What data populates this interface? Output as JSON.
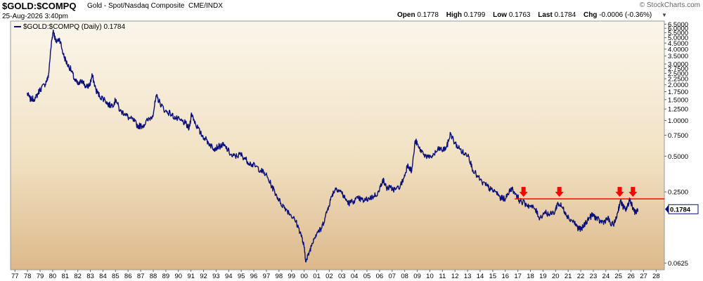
{
  "header": {
    "symbol": "$GOLD:$COMPQ",
    "name": "Gold - Spot/Nasdaq Composite",
    "exchange": "CME/INDX",
    "date": "25-Aug-2026 3:40pm",
    "brand": "© StockCharts.com",
    "open_label": "Open",
    "open": "0.1778",
    "high_label": "High",
    "high": "0.1799",
    "low_label": "Low",
    "low": "0.1763",
    "last_label": "Last",
    "last": "0.1784",
    "chg_label": "Chg",
    "chg": "-0.0006 (-0.36%)"
  },
  "colors": {
    "line": "#0a0f7a",
    "resistance": "#ff0000",
    "arrows": "#ff0000",
    "bg_top": "#fbf6ec",
    "bg_bottom": "#dcb98b"
  },
  "chart_data": {
    "type": "line",
    "scale": "log",
    "legend": "$GOLD:$COMPQ (Daily) 0.1784",
    "last_value_label": "0.1784",
    "x_labels": [
      "77",
      "78",
      "79",
      "80",
      "81",
      "82",
      "83",
      "84",
      "85",
      "86",
      "87",
      "88",
      "89",
      "90",
      "91",
      "92",
      "93",
      "94",
      "95",
      "96",
      "97",
      "98",
      "99",
      "00",
      "01",
      "02",
      "03",
      "04",
      "05",
      "06",
      "07",
      "08",
      "09",
      "10",
      "11",
      "12",
      "13",
      "14",
      "15",
      "16",
      "17",
      "18",
      "19",
      "20",
      "21",
      "22",
      "23",
      "24",
      "25",
      "26",
      "27",
      "28"
    ],
    "y_ticks": [
      {
        "value": 6.5,
        "label": "6.5000"
      },
      {
        "value": 6.0,
        "label": "6.0000"
      },
      {
        "value": 5.5,
        "label": "5.5000"
      },
      {
        "value": 5.0,
        "label": "5.0000"
      },
      {
        "value": 4.5,
        "label": "4.5000"
      },
      {
        "value": 4.0,
        "label": "4.0000"
      },
      {
        "value": 3.5,
        "label": "3.5000"
      },
      {
        "value": 3.0,
        "label": "3.0000"
      },
      {
        "value": 2.75,
        "label": "2.7500"
      },
      {
        "value": 2.5,
        "label": "2.5000"
      },
      {
        "value": 2.25,
        "label": "2.2500"
      },
      {
        "value": 2.0,
        "label": "2.0000"
      },
      {
        "value": 1.75,
        "label": "1.7500"
      },
      {
        "value": 1.5,
        "label": "1.5000"
      },
      {
        "value": 1.25,
        "label": "1.2500"
      },
      {
        "value": 1.0,
        "label": "1.0000"
      },
      {
        "value": 0.75,
        "label": "0.7500"
      },
      {
        "value": 0.5,
        "label": "0.5000"
      },
      {
        "value": 0.25,
        "label": "0.2500"
      },
      {
        "value": 0.0625,
        "label": "0.0625"
      }
    ],
    "ylim": [
      0.055,
      6.9
    ],
    "xlim": [
      1976.7,
      2028.7
    ],
    "series": [
      {
        "points": [
          [
            1978.0,
            1.7
          ],
          [
            1978.3,
            1.5
          ],
          [
            1978.7,
            1.55
          ],
          [
            1979.0,
            1.8
          ],
          [
            1979.4,
            2.0
          ],
          [
            1979.7,
            2.3
          ],
          [
            1979.95,
            4.5
          ],
          [
            1980.1,
            5.8
          ],
          [
            1980.3,
            4.6
          ],
          [
            1980.6,
            4.9
          ],
          [
            1980.9,
            3.6
          ],
          [
            1981.2,
            3.0
          ],
          [
            1981.5,
            2.7
          ],
          [
            1981.8,
            2.2
          ],
          [
            1982.1,
            2.0
          ],
          [
            1982.4,
            2.2
          ],
          [
            1982.7,
            1.9
          ],
          [
            1983.0,
            2.0
          ],
          [
            1983.2,
            2.4
          ],
          [
            1983.5,
            1.8
          ],
          [
            1983.8,
            1.6
          ],
          [
            1984.2,
            1.5
          ],
          [
            1984.5,
            1.35
          ],
          [
            1984.8,
            1.35
          ],
          [
            1985.1,
            1.5
          ],
          [
            1985.4,
            1.2
          ],
          [
            1985.8,
            1.15
          ],
          [
            1986.1,
            1.05
          ],
          [
            1986.5,
            1.0
          ],
          [
            1986.8,
            0.9
          ],
          [
            1987.2,
            0.9
          ],
          [
            1987.6,
            1.0
          ],
          [
            1988.0,
            1.1
          ],
          [
            1988.3,
            1.6
          ],
          [
            1988.6,
            1.4
          ],
          [
            1989.0,
            1.2
          ],
          [
            1989.4,
            1.15
          ],
          [
            1989.8,
            1.05
          ],
          [
            1990.2,
            1.0
          ],
          [
            1990.6,
            0.95
          ],
          [
            1990.9,
            0.85
          ],
          [
            1991.1,
            1.15
          ],
          [
            1991.4,
            0.95
          ],
          [
            1991.8,
            0.78
          ],
          [
            1992.2,
            0.7
          ],
          [
            1992.6,
            0.62
          ],
          [
            1992.9,
            0.58
          ],
          [
            1993.2,
            0.6
          ],
          [
            1993.6,
            0.62
          ],
          [
            1993.9,
            0.58
          ],
          [
            1994.3,
            0.5
          ],
          [
            1994.7,
            0.5
          ],
          [
            1995.0,
            0.52
          ],
          [
            1995.4,
            0.47
          ],
          [
            1995.8,
            0.43
          ],
          [
            1996.2,
            0.41
          ],
          [
            1996.6,
            0.38
          ],
          [
            1997.0,
            0.35
          ],
          [
            1997.4,
            0.29
          ],
          [
            1997.8,
            0.24
          ],
          [
            1998.2,
            0.2
          ],
          [
            1998.6,
            0.18
          ],
          [
            1999.0,
            0.16
          ],
          [
            1999.4,
            0.14
          ],
          [
            1999.8,
            0.11
          ],
          [
            2000.05,
            0.085
          ],
          [
            2000.2,
            0.064
          ],
          [
            2000.5,
            0.08
          ],
          [
            2000.8,
            0.1
          ],
          [
            2001.1,
            0.115
          ],
          [
            2001.4,
            0.12
          ],
          [
            2001.7,
            0.15
          ],
          [
            2002.0,
            0.19
          ],
          [
            2002.3,
            0.24
          ],
          [
            2002.6,
            0.27
          ],
          [
            2003.0,
            0.25
          ],
          [
            2003.3,
            0.22
          ],
          [
            2003.6,
            0.2
          ],
          [
            2004.0,
            0.21
          ],
          [
            2004.4,
            0.22
          ],
          [
            2004.8,
            0.21
          ],
          [
            2005.2,
            0.22
          ],
          [
            2005.6,
            0.23
          ],
          [
            2006.0,
            0.25
          ],
          [
            2006.3,
            0.32
          ],
          [
            2006.6,
            0.27
          ],
          [
            2006.9,
            0.27
          ],
          [
            2007.3,
            0.26
          ],
          [
            2007.7,
            0.28
          ],
          [
            2008.0,
            0.33
          ],
          [
            2008.3,
            0.43
          ],
          [
            2008.6,
            0.37
          ],
          [
            2008.9,
            0.68
          ],
          [
            2009.2,
            0.58
          ],
          [
            2009.6,
            0.52
          ],
          [
            2010.0,
            0.48
          ],
          [
            2010.4,
            0.52
          ],
          [
            2010.8,
            0.58
          ],
          [
            2011.1,
            0.56
          ],
          [
            2011.4,
            0.6
          ],
          [
            2011.7,
            0.78
          ],
          [
            2012.0,
            0.65
          ],
          [
            2012.4,
            0.58
          ],
          [
            2012.8,
            0.52
          ],
          [
            2013.1,
            0.52
          ],
          [
            2013.4,
            0.4
          ],
          [
            2013.8,
            0.34
          ],
          [
            2014.2,
            0.3
          ],
          [
            2014.6,
            0.28
          ],
          [
            2014.9,
            0.26
          ],
          [
            2015.3,
            0.25
          ],
          [
            2015.7,
            0.22
          ],
          [
            2016.1,
            0.22
          ],
          [
            2016.5,
            0.27
          ],
          [
            2016.9,
            0.24
          ],
          [
            2017.2,
            0.21
          ],
          [
            2017.6,
            0.2
          ],
          [
            2018.0,
            0.19
          ],
          [
            2018.4,
            0.18
          ],
          [
            2018.8,
            0.15
          ],
          [
            2019.2,
            0.17
          ],
          [
            2019.6,
            0.16
          ],
          [
            2020.0,
            0.17
          ],
          [
            2020.2,
            0.2
          ],
          [
            2020.5,
            0.19
          ],
          [
            2020.8,
            0.17
          ],
          [
            2021.1,
            0.15
          ],
          [
            2021.5,
            0.14
          ],
          [
            2021.8,
            0.125
          ],
          [
            2022.1,
            0.12
          ],
          [
            2022.4,
            0.135
          ],
          [
            2022.7,
            0.15
          ],
          [
            2023.0,
            0.16
          ],
          [
            2023.3,
            0.15
          ],
          [
            2023.6,
            0.14
          ],
          [
            2023.9,
            0.14
          ],
          [
            2024.2,
            0.15
          ],
          [
            2024.5,
            0.13
          ],
          [
            2024.8,
            0.14
          ],
          [
            2025.0,
            0.17
          ],
          [
            2025.2,
            0.21
          ],
          [
            2025.4,
            0.19
          ],
          [
            2025.6,
            0.175
          ],
          [
            2025.8,
            0.19
          ],
          [
            2025.95,
            0.22
          ],
          [
            2026.15,
            0.19
          ],
          [
            2026.4,
            0.165
          ],
          [
            2026.6,
            0.1784
          ]
        ]
      }
    ],
    "annotations": {
      "resistance_level": 0.218,
      "resistance_x_range": [
        2016.8,
        2028.7
      ],
      "arrow_dates": [
        2017.5,
        2020.35,
        2025.15,
        2026.2
      ]
    }
  }
}
